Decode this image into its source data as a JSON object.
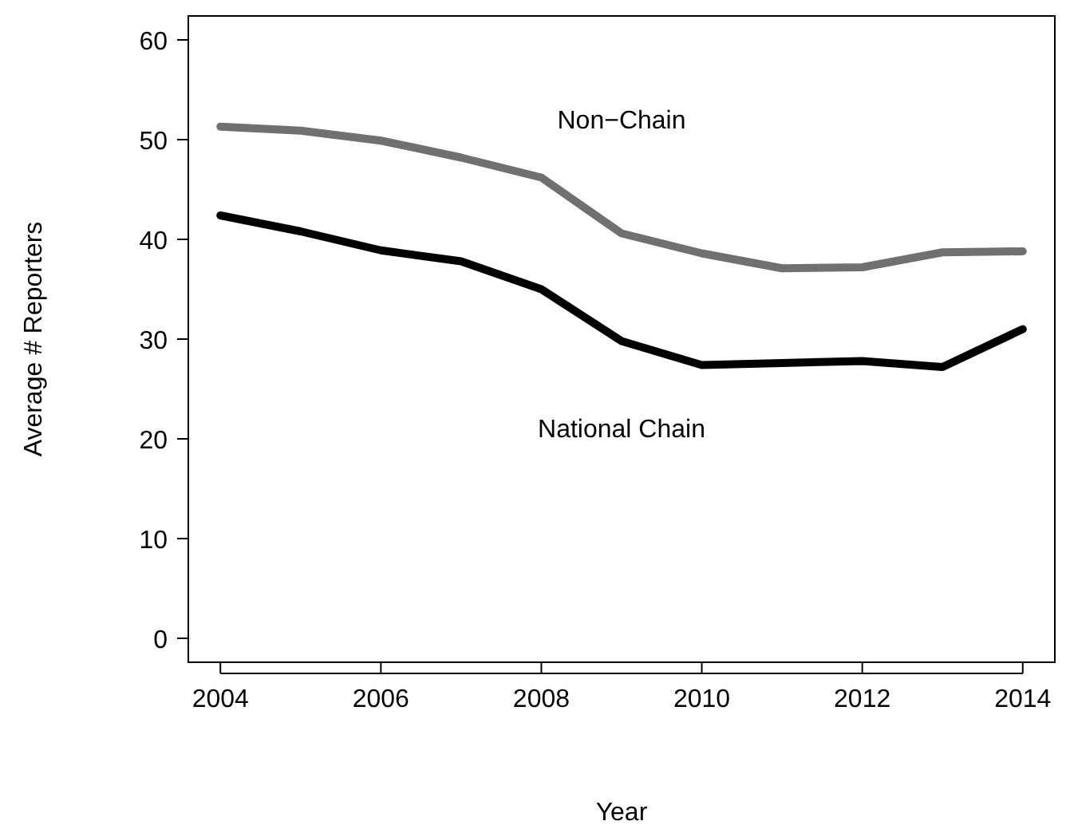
{
  "chart_data": {
    "type": "line",
    "xlabel": "Year",
    "ylabel": "Average # Reporters",
    "x": [
      2004,
      2005,
      2006,
      2007,
      2008,
      2009,
      2010,
      2011,
      2012,
      2013,
      2014
    ],
    "series": [
      {
        "name": "Non−Chain",
        "color": "#707070",
        "values": [
          51.3,
          50.9,
          49.9,
          48.2,
          46.2,
          40.6,
          38.6,
          37.1,
          37.2,
          38.7,
          38.8
        ]
      },
      {
        "name": "National Chain",
        "color": "#000000",
        "values": [
          42.4,
          40.8,
          38.9,
          37.8,
          35.0,
          29.8,
          27.4,
          27.6,
          27.8,
          27.2,
          31.0
        ]
      }
    ],
    "xlim": [
      2003.6,
      2014.4
    ],
    "xticks": [
      2004,
      2006,
      2008,
      2010,
      2012,
      2014
    ],
    "ylim": [
      -2.4,
      62.4
    ],
    "yticks": [
      0,
      10,
      20,
      30,
      40,
      50,
      60
    ],
    "grid": false,
    "marker": "none",
    "line_style": "solid"
  }
}
